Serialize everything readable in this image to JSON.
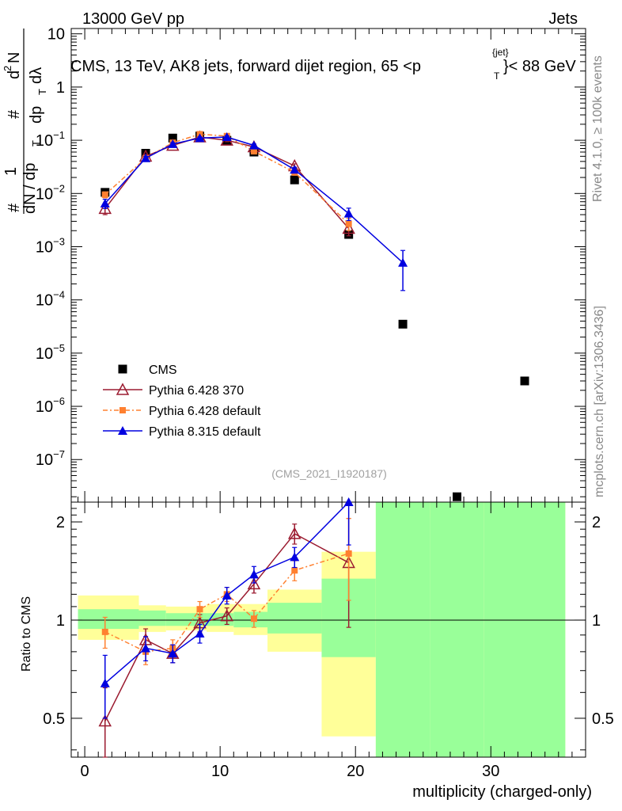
{
  "header": {
    "left": "13000 GeV pp",
    "right": "Jets"
  },
  "title": "CMS, 13 TeV, AK8 jets, forward dijet region, 65 <p",
  "title_sup": "{jet}",
  "title_sub": "T",
  "title_end": "}< 88 GeV",
  "side_labels": {
    "rivet": "Rivet 4.1.0, ≥ 100k events",
    "mcplots": "mcplots.cern.ch [arXiv:1306.3436]"
  },
  "watermark": "(CMS_2021_I1920187)",
  "upper_ylabel": {
    "a": "#",
    "b": "1",
    "c": "dN / dp",
    "c_sub": "T",
    "d": "#",
    "e": "d",
    "e_sup": "2",
    "f": "N",
    "g": "dp",
    "g_sub": "T",
    "h": "dλ"
  },
  "ratio_ylabel": "Ratio to CMS",
  "xlabel": "multiplicity (charged-only)",
  "colors": {
    "cms": "#000000",
    "p6_370": "#9b1b30",
    "p6_def": "#ff8030",
    "p8": "#0000e0",
    "band_yellow": "#ffff99",
    "band_green": "#99ff99"
  },
  "chart_data": [
    {
      "type": "scatter",
      "scale": "log",
      "xlim": [
        -1,
        37
      ],
      "ylim_exp": [
        -7.8,
        1.1
      ],
      "xticks": [
        0,
        10,
        20,
        30
      ],
      "yticks": [
        {
          "exp": 1,
          "label": "10"
        },
        {
          "exp": 0,
          "label": "1"
        },
        {
          "exp": -1,
          "label": "10",
          "sup": "−1"
        },
        {
          "exp": -2,
          "label": "10",
          "sup": "−2"
        },
        {
          "exp": -3,
          "label": "10",
          "sup": "−3"
        },
        {
          "exp": -4,
          "label": "10",
          "sup": "−4"
        },
        {
          "exp": -5,
          "label": "10",
          "sup": "−5"
        },
        {
          "exp": -6,
          "label": "10",
          "sup": "−6"
        },
        {
          "exp": -7,
          "label": "10",
          "sup": "−7"
        }
      ],
      "series": [
        {
          "name": "CMS",
          "key": "cms",
          "marker": "square",
          "x": [
            1.5,
            4.5,
            6.5,
            8.5,
            10.5,
            12.5,
            15.5,
            19.5,
            23.5,
            27.5,
            32.5
          ],
          "y": [
            0.0105,
            0.057,
            0.11,
            0.12,
            0.1,
            0.06,
            0.018,
            0.0017,
            3.5e-05,
            2e-08,
            3e-06
          ]
        },
        {
          "name": "Pythia 6.428 370",
          "key": "p6_370",
          "marker": "triangle-open",
          "x": [
            1.5,
            4.5,
            6.5,
            8.5,
            10.5,
            12.5,
            15.5,
            19.5
          ],
          "y": [
            0.0052,
            0.05,
            0.08,
            0.115,
            0.1,
            0.075,
            0.033,
            0.0022
          ],
          "err": [
            0.0012,
            0.004,
            0.005,
            0.006,
            0.006,
            0.005,
            0.003,
            0.0006
          ]
        },
        {
          "name": "Pythia 6.428 default",
          "key": "p6_def",
          "marker": "square-small",
          "dash": "6,3,2,3",
          "x": [
            1.5,
            4.5,
            6.5,
            8.5,
            10.5,
            12.5,
            15.5,
            19.5
          ],
          "y": [
            0.0095,
            0.046,
            0.09,
            0.13,
            0.12,
            0.062,
            0.025,
            0.0027
          ],
          "err": [
            0.0012,
            0.004,
            0.005,
            0.006,
            0.006,
            0.005,
            0.003,
            0.0007
          ]
        },
        {
          "name": "Pythia 8.315 default",
          "key": "p8",
          "marker": "triangle",
          "x": [
            1.5,
            4.5,
            6.5,
            8.5,
            10.5,
            12.5,
            15.5,
            19.5,
            23.5
          ],
          "y": [
            0.0065,
            0.046,
            0.085,
            0.11,
            0.115,
            0.08,
            0.028,
            0.0042,
            0.0005
          ],
          "err": [
            0.0013,
            0.004,
            0.005,
            0.006,
            0.006,
            0.005,
            0.003,
            0.0011,
            0.00035
          ]
        }
      ]
    },
    {
      "type": "scatter",
      "scale": "log",
      "xlim": [
        -1,
        37
      ],
      "ylim": [
        0.38,
        2.3
      ],
      "xticks": [
        0,
        10,
        20,
        30
      ],
      "yticks": [
        {
          "v": 0.5,
          "label": "0.5"
        },
        {
          "v": 1,
          "label": "1"
        },
        {
          "v": 2,
          "label": "2"
        }
      ],
      "bands": [
        {
          "x0": -0.5,
          "x1": 4,
          "ylo": 0.87,
          "yhi": 1.19,
          "glo": 0.94,
          "ghi": 1.08
        },
        {
          "x0": 4,
          "x1": 6,
          "ylo": 0.92,
          "yhi": 1.11,
          "glo": 0.96,
          "ghi": 1.07
        },
        {
          "x0": 6,
          "x1": 9,
          "ylo": 0.93,
          "yhi": 1.1,
          "glo": 0.96,
          "ghi": 1.05
        },
        {
          "x0": 9,
          "x1": 11,
          "ylo": 0.92,
          "yhi": 1.12,
          "glo": 0.96,
          "ghi": 1.05
        },
        {
          "x0": 11,
          "x1": 13.5,
          "ylo": 0.9,
          "yhi": 1.12,
          "glo": 0.95,
          "ghi": 1.06
        },
        {
          "x0": 13.5,
          "x1": 17.5,
          "ylo": 0.8,
          "yhi": 1.24,
          "glo": 0.91,
          "ghi": 1.13
        },
        {
          "x0": 17.5,
          "x1": 21.5,
          "ylo": 0.44,
          "yhi": 1.62,
          "glo": 0.77,
          "ghi": 1.34
        },
        {
          "x0": 21.5,
          "x1": 25.5,
          "ylo": 0.35,
          "yhi": 2.3,
          "glo": 0.35,
          "ghi": 2.3
        },
        {
          "x0": 25.5,
          "x1": 29.5,
          "ylo": 2.06,
          "yhi": 2.3,
          "glo": 0.35,
          "ghi": 2.3
        },
        {
          "x0": 29.5,
          "x1": 35.5,
          "ylo": 0.35,
          "yhi": 2.3,
          "glo": 0.35,
          "ghi": 2.3
        }
      ],
      "series": [
        {
          "name": "Pythia 6.428 370",
          "key": "p6_370",
          "marker": "triangle-open",
          "x": [
            1.5,
            4.5,
            6.5,
            8.5,
            10.5,
            12.5,
            15.5,
            19.5
          ],
          "y": [
            0.49,
            0.87,
            0.79,
            0.98,
            1.03,
            1.29,
            1.84,
            1.5
          ],
          "err": [
            0.13,
            0.07,
            0.05,
            0.06,
            0.06,
            0.08,
            0.13,
            0.55
          ]
        },
        {
          "name": "Pythia 6.428 default",
          "key": "p6_def",
          "marker": "square-small",
          "dash": "6,3,2,3",
          "x": [
            1.5,
            4.5,
            6.5,
            8.5,
            10.5,
            12.5,
            15.5,
            19.5
          ],
          "y": [
            0.92,
            0.8,
            0.82,
            1.08,
            1.2,
            1.01,
            1.42,
            1.6
          ],
          "err": [
            0.1,
            0.07,
            0.05,
            0.06,
            0.06,
            0.06,
            0.1,
            0.45
          ]
        },
        {
          "name": "Pythia 8.315 default",
          "key": "p8",
          "marker": "triangle",
          "x": [
            1.5,
            4.5,
            6.5,
            8.5,
            10.5,
            12.5,
            15.5,
            19.5
          ],
          "y": [
            0.64,
            0.82,
            0.79,
            0.91,
            1.19,
            1.38,
            1.56,
            2.3
          ],
          "err": [
            0.14,
            0.07,
            0.05,
            0.06,
            0.07,
            0.08,
            0.11,
            0.6
          ]
        }
      ]
    }
  ]
}
